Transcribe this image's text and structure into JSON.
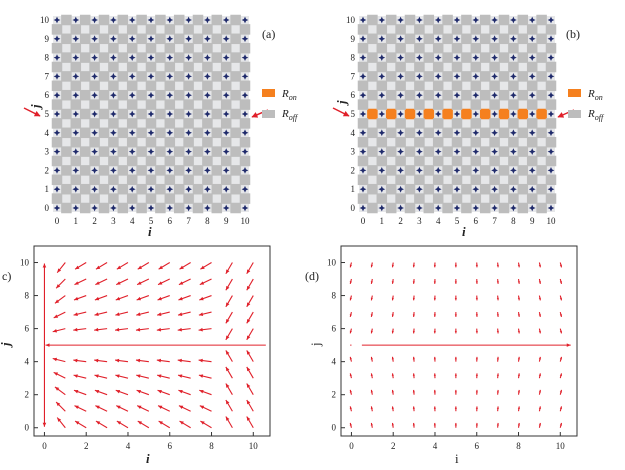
{
  "panels": [
    {
      "id": "a",
      "label": "(a)",
      "type": "grid-resistor-network",
      "x_ticks": [
        "0",
        "1",
        "2",
        "3",
        "4",
        "5",
        "6",
        "7",
        "8",
        "9",
        "10"
      ],
      "y_ticks": [
        "0",
        "1",
        "2",
        "3",
        "4",
        "5",
        "6",
        "7",
        "8",
        "9",
        "10"
      ],
      "xlabel": "i",
      "ylabel": "j",
      "on_row": null,
      "input_row": 5,
      "legend": [
        {
          "key": "on",
          "label": "R",
          "sub": "on",
          "color": "#f5801e"
        },
        {
          "key": "off",
          "label": "R",
          "sub": "off",
          "color": "#bdbdbd"
        }
      ]
    },
    {
      "id": "b",
      "label": "(b)",
      "type": "grid-resistor-network",
      "x_ticks": [
        "0",
        "1",
        "2",
        "3",
        "4",
        "5",
        "6",
        "7",
        "8",
        "9",
        "10"
      ],
      "y_ticks": [
        "0",
        "1",
        "2",
        "3",
        "4",
        "5",
        "6",
        "7",
        "8",
        "9",
        "10"
      ],
      "xlabel": "i",
      "ylabel": "j",
      "on_row": 5,
      "input_row": 5,
      "legend": [
        {
          "key": "on",
          "label": "R",
          "sub": "on",
          "color": "#f5801e"
        },
        {
          "key": "off",
          "label": "R",
          "sub": "off",
          "color": "#bdbdbd"
        }
      ]
    },
    {
      "id": "c",
      "label": "c)",
      "type": "vector-field",
      "x_ticks": [
        "0",
        "2",
        "4",
        "6",
        "8",
        "10"
      ],
      "y_ticks": [
        "0",
        "2",
        "4",
        "6",
        "8",
        "10"
      ],
      "xlabel": "i",
      "ylabel": "j",
      "xlim": [
        -0.5,
        10.8
      ],
      "ylim": [
        -0.5,
        11
      ]
    },
    {
      "id": "d",
      "label": "(d)",
      "type": "vector-field",
      "x_ticks": [
        "0",
        "2",
        "4",
        "6",
        "8",
        "10"
      ],
      "y_ticks": [
        "0",
        "2",
        "4",
        "6",
        "8",
        "10"
      ],
      "xlabel": "i",
      "ylabel": "j",
      "xlim": [
        -0.5,
        10.8
      ],
      "ylim": [
        -0.5,
        11
      ]
    }
  ],
  "colors": {
    "node": "#1f2a6b",
    "resistor_off": "#bdbdbd",
    "resistor_on": "#f5801e",
    "arrow": "#e0202a",
    "axis": "#333333"
  }
}
